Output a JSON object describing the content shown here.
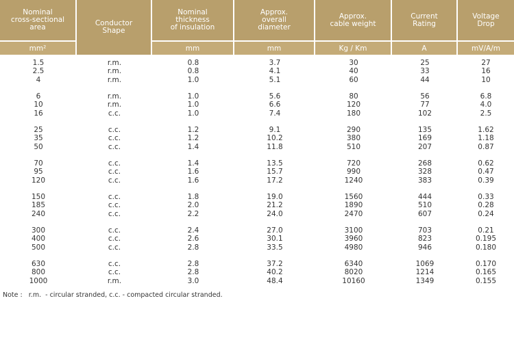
{
  "table": {
    "header": [
      [
        "Nominal",
        "cross-sectional",
        "area"
      ],
      [
        "Conductor",
        "Shape"
      ],
      [
        "Nominal",
        "thickness",
        "of insulation"
      ],
      [
        "Approx.",
        "overall",
        "diameter"
      ],
      [
        "Approx.",
        "cable weight"
      ],
      [
        "Current",
        "Rating"
      ],
      [
        "Voltage",
        "Drop"
      ]
    ],
    "units": [
      "mm²",
      "mm",
      "mm",
      "Kg / Km",
      "A",
      "mV/A/m"
    ],
    "groups": [
      [
        [
          "1.5",
          "r.m.",
          "0.8",
          "3.7",
          "30",
          "25",
          "27"
        ],
        [
          "2.5",
          "r.m.",
          "0.8",
          "4.1",
          "40",
          "33",
          "16"
        ],
        [
          "4",
          "r.m.",
          "1.0",
          "5.1",
          "60",
          "44",
          "10"
        ]
      ],
      [
        [
          "6",
          "r.m.",
          "1.0",
          "5.6",
          "80",
          "56",
          "6.8"
        ],
        [
          "10",
          "r.m.",
          "1.0",
          "6.6",
          "120",
          "77",
          "4.0"
        ],
        [
          "16",
          "c.c.",
          "1.0",
          "7.4",
          "180",
          "102",
          "2.5"
        ]
      ],
      [
        [
          "25",
          "c.c.",
          "1.2",
          "9.1",
          "290",
          "135",
          "1.62"
        ],
        [
          "35",
          "c.c.",
          "1.2",
          "10.2",
          "380",
          "169",
          "1.18"
        ],
        [
          "50",
          "c.c.",
          "1.4",
          "11.8",
          "510",
          "207",
          "0.87"
        ]
      ],
      [
        [
          "70",
          "c.c.",
          "1.4",
          "13.5",
          "720",
          "268",
          "0.62"
        ],
        [
          "95",
          "c.c.",
          "1.6",
          "15.7",
          "990",
          "328",
          "0.47"
        ],
        [
          "120",
          "c.c.",
          "1.6",
          "17.2",
          "1240",
          "383",
          "0.39"
        ]
      ],
      [
        [
          "150",
          "c.c.",
          "1.8",
          "19.0",
          "1560",
          "444",
          "0.33"
        ],
        [
          "185",
          "c.c.",
          "2.0",
          "21.2",
          "1890",
          "510",
          "0.28"
        ],
        [
          "240",
          "c.c.",
          "2.2",
          "24.0",
          "2470",
          "607",
          "0.24"
        ]
      ],
      [
        [
          "300",
          "c.c.",
          "2.4",
          "27.0",
          "3100",
          "703",
          "0.21"
        ],
        [
          "400",
          "c.c.",
          "2.6",
          "30.1",
          "3960",
          "823",
          "0.195"
        ],
        [
          "500",
          "c.c.",
          "2.8",
          "33.5",
          "4980",
          "946",
          "0.180"
        ]
      ],
      [
        [
          "630",
          "c.c.",
          "2.8",
          "37.2",
          "6340",
          "1069",
          "0.170"
        ],
        [
          "800",
          "c.c.",
          "2.8",
          "40.2",
          "8020",
          "1214",
          "0.165"
        ],
        [
          "1000",
          "r.m.",
          "3.0",
          "48.4",
          "10160",
          "1349",
          "0.155"
        ]
      ]
    ],
    "note": "Note :   r.m.  - circular stranded, c.c. - compacted circular stranded."
  }
}
